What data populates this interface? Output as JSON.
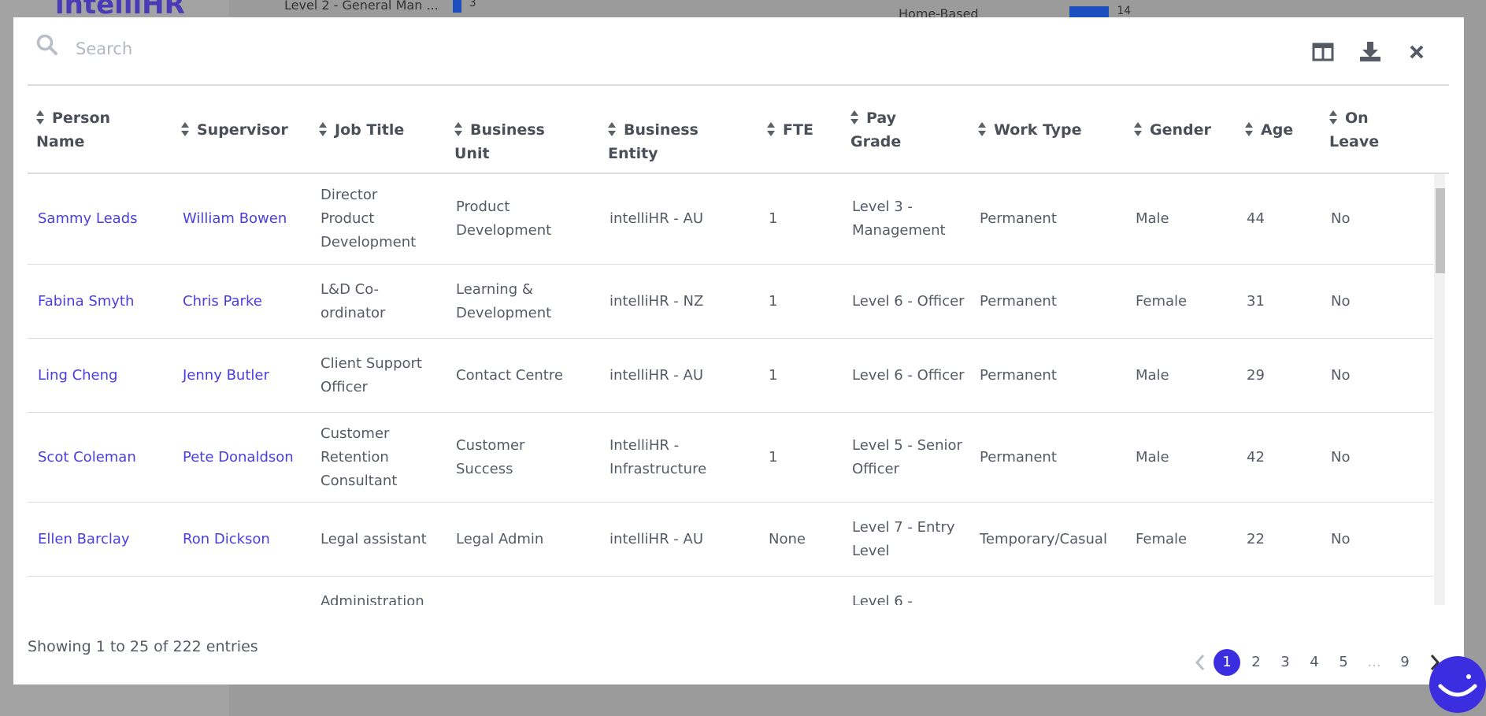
{
  "background": {
    "logo": "intelliHR",
    "bars": [
      {
        "label": "Level 2 - General Man ...",
        "value": 3
      },
      {
        "label": "Home-Based",
        "value": 14
      }
    ]
  },
  "search": {
    "placeholder": "Search"
  },
  "table": {
    "columns": [
      "Person Name",
      "Supervisor",
      "Job Title",
      "Business Unit",
      "Business Entity",
      "FTE",
      "Pay Grade",
      "Work Type",
      "Gender",
      "Age",
      "On Leave"
    ],
    "rows": [
      [
        "Sammy Leads",
        "William Bowen",
        "Director Product Development",
        "Product Development",
        "intelliHR - AU",
        "1",
        "Level 3 - Management",
        "Permanent",
        "Male",
        "44",
        "No"
      ],
      [
        "Fabina Smyth",
        "Chris Parke",
        "L&D Co-ordinator",
        "Learning & Development",
        "intelliHR - NZ",
        "1",
        "Level 6 - Officer",
        "Permanent",
        "Female",
        "31",
        "No"
      ],
      [
        "Ling Cheng",
        "Jenny Butler",
        "Client Support Officer",
        "Contact Centre",
        "intelliHR - AU",
        "1",
        "Level 6 - Officer",
        "Permanent",
        "Male",
        "29",
        "No"
      ],
      [
        "Scot Coleman",
        "Pete Donaldson",
        "Customer Retention Consultant",
        "Customer Success",
        "IntelliHR - Infrastructure",
        "1",
        "Level 5 - Senior Officer",
        "Permanent",
        "Male",
        "42",
        "No"
      ],
      [
        "Ellen Barclay",
        "Ron Dickson",
        "Legal assistant",
        "Legal Admin",
        "intelliHR - AU",
        "None",
        "Level 7 - Entry Level",
        "Temporary/Casual",
        "Female",
        "22",
        "No"
      ]
    ],
    "partial_row": {
      "job_title": "Administration",
      "pay_grade": "Level 6 -"
    }
  },
  "footer": {
    "summary": "Showing 1 to 25 of 222 entries",
    "pages": [
      "1",
      "2",
      "3",
      "4",
      "5",
      "...",
      "9"
    ]
  }
}
